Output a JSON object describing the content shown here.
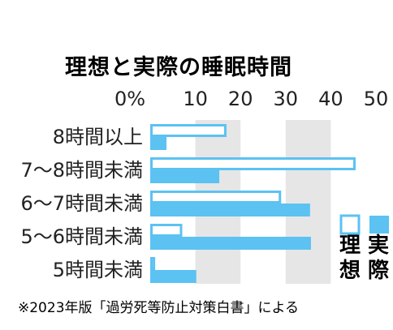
{
  "colors": {
    "ideal_fill": "#ffffff",
    "ideal_stroke": "#5bc2f2",
    "actual_fill": "#5bc2f2",
    "band": "#e6e6e6",
    "text": "#222222"
  },
  "note": "※2023年版「過労死等防止対策白書」による",
  "legend": {
    "ideal": {
      "char1": "理",
      "char2": "想"
    },
    "actual": {
      "char1": "実",
      "char2": "際"
    }
  },
  "chart_data": {
    "type": "bar",
    "orientation": "horizontal",
    "title": "理想と実際の睡眠時間",
    "xlim": [
      0,
      50
    ],
    "x_ticks": [
      "0%",
      "10",
      "20",
      "30",
      "40",
      "50"
    ],
    "categories": [
      "8時間以上",
      "7〜8時間未満",
      "6〜7時間未満",
      "5〜6時間未満",
      "5時間未満"
    ],
    "series": [
      {
        "name": "理想",
        "values": [
          16.9,
          45.5,
          29.0,
          7.1,
          1.1
        ]
      },
      {
        "name": "実際",
        "values": [
          3.6,
          15.3,
          35.4,
          35.6,
          10.2
        ]
      }
    ]
  }
}
